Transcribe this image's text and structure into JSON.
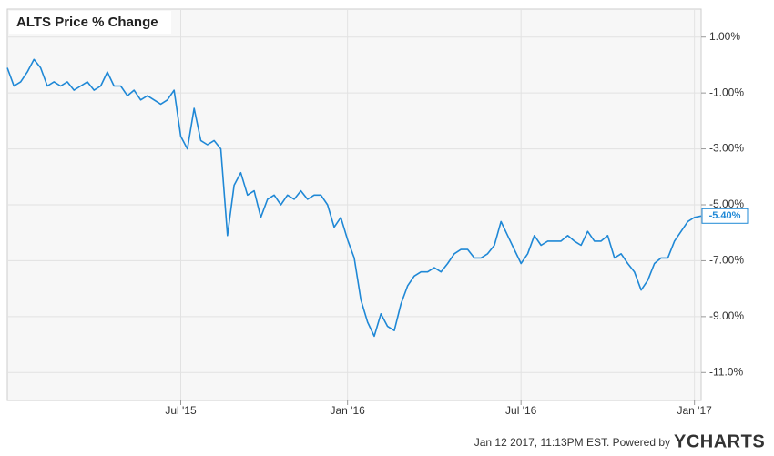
{
  "chart_data": {
    "type": "line",
    "title": "ALTS Price % Change",
    "footer": "Jan 12 2017, 11:13PM EST.  Powered by",
    "brand": "YCHARTS",
    "series": [
      {
        "name": "ALTS",
        "color": "#1f88d6",
        "values": [
          -0.1,
          -0.75,
          -0.6,
          -0.25,
          0.2,
          -0.1,
          -0.75,
          -0.6,
          -0.75,
          -0.6,
          -0.9,
          -0.75,
          -0.6,
          -0.9,
          -0.75,
          -0.25,
          -0.75,
          -0.75,
          -1.1,
          -0.9,
          -1.25,
          -1.1,
          -1.25,
          -1.4,
          -1.25,
          -0.9,
          -2.55,
          -3.0,
          -1.55,
          -2.7,
          -2.85,
          -2.7,
          -3.0,
          -6.1,
          -4.3,
          -3.85,
          -4.65,
          -4.5,
          -5.45,
          -4.8,
          -4.65,
          -5.0,
          -4.65,
          -4.8,
          -4.5,
          -4.8,
          -4.65,
          -4.65,
          -5.0,
          -5.8,
          -5.45,
          -6.25,
          -6.9,
          -8.4,
          -9.2,
          -9.7,
          -8.9,
          -9.35,
          -9.5,
          -8.55,
          -7.9,
          -7.55,
          -7.4,
          -7.4,
          -7.25,
          -7.4,
          -7.1,
          -6.75,
          -6.6,
          -6.6,
          -6.9,
          -6.9,
          -6.75,
          -6.45,
          -5.6,
          -6.1,
          -6.6,
          -7.1,
          -6.75,
          -6.1,
          -6.45,
          -6.3,
          -6.3,
          -6.3,
          -6.1,
          -6.3,
          -6.45,
          -5.95,
          -6.3,
          -6.3,
          -6.1,
          -6.9,
          -6.75,
          -7.1,
          -7.4,
          -8.05,
          -7.7,
          -7.1,
          -6.9,
          -6.9,
          -6.3,
          -5.95,
          -5.6,
          -5.45,
          -5.4
        ],
        "value_labels": [
          null,
          null,
          null,
          null,
          null,
          null,
          null,
          null,
          null,
          null,
          null,
          null,
          null,
          null,
          null,
          null,
          null,
          null,
          null,
          null,
          null,
          null,
          null,
          null,
          null,
          null,
          null,
          null,
          null,
          null,
          null,
          null,
          null,
          null,
          null,
          null,
          null,
          null,
          null,
          null,
          null,
          null,
          null,
          null,
          null,
          null,
          null,
          null,
          null,
          null,
          null,
          null,
          null,
          null,
          null,
          null,
          null,
          null,
          null,
          null,
          null,
          null,
          null,
          null,
          null,
          null,
          null,
          null,
          null,
          null,
          null,
          null,
          null,
          null,
          null,
          null,
          null,
          null,
          null,
          null,
          null,
          null,
          null,
          null,
          null,
          null,
          null,
          null,
          null,
          null,
          null,
          null,
          null,
          null,
          null,
          null,
          null,
          null,
          null,
          null,
          null,
          null,
          null,
          null,
          "-5.40%"
        ]
      }
    ],
    "xlim": [
      0,
      104
    ],
    "xticks": [
      {
        "value": 26,
        "label": "Jul '15"
      },
      {
        "value": 51,
        "label": "Jan '16"
      },
      {
        "value": 77,
        "label": "Jul '16"
      },
      {
        "value": 103,
        "label": "Jan '17"
      }
    ],
    "ylim": [
      -12,
      2
    ],
    "yticks": [
      {
        "value": 1,
        "label": "1.00%"
      },
      {
        "value": -1,
        "label": "-1.00%"
      },
      {
        "value": -3,
        "label": "-3.00%"
      },
      {
        "value": -5,
        "label": "-5.00%"
      },
      {
        "value": -7,
        "label": "-7.00%"
      },
      {
        "value": -9,
        "label": "-9.00%"
      },
      {
        "value": -11,
        "label": "-11.0%"
      }
    ],
    "grid": true
  }
}
